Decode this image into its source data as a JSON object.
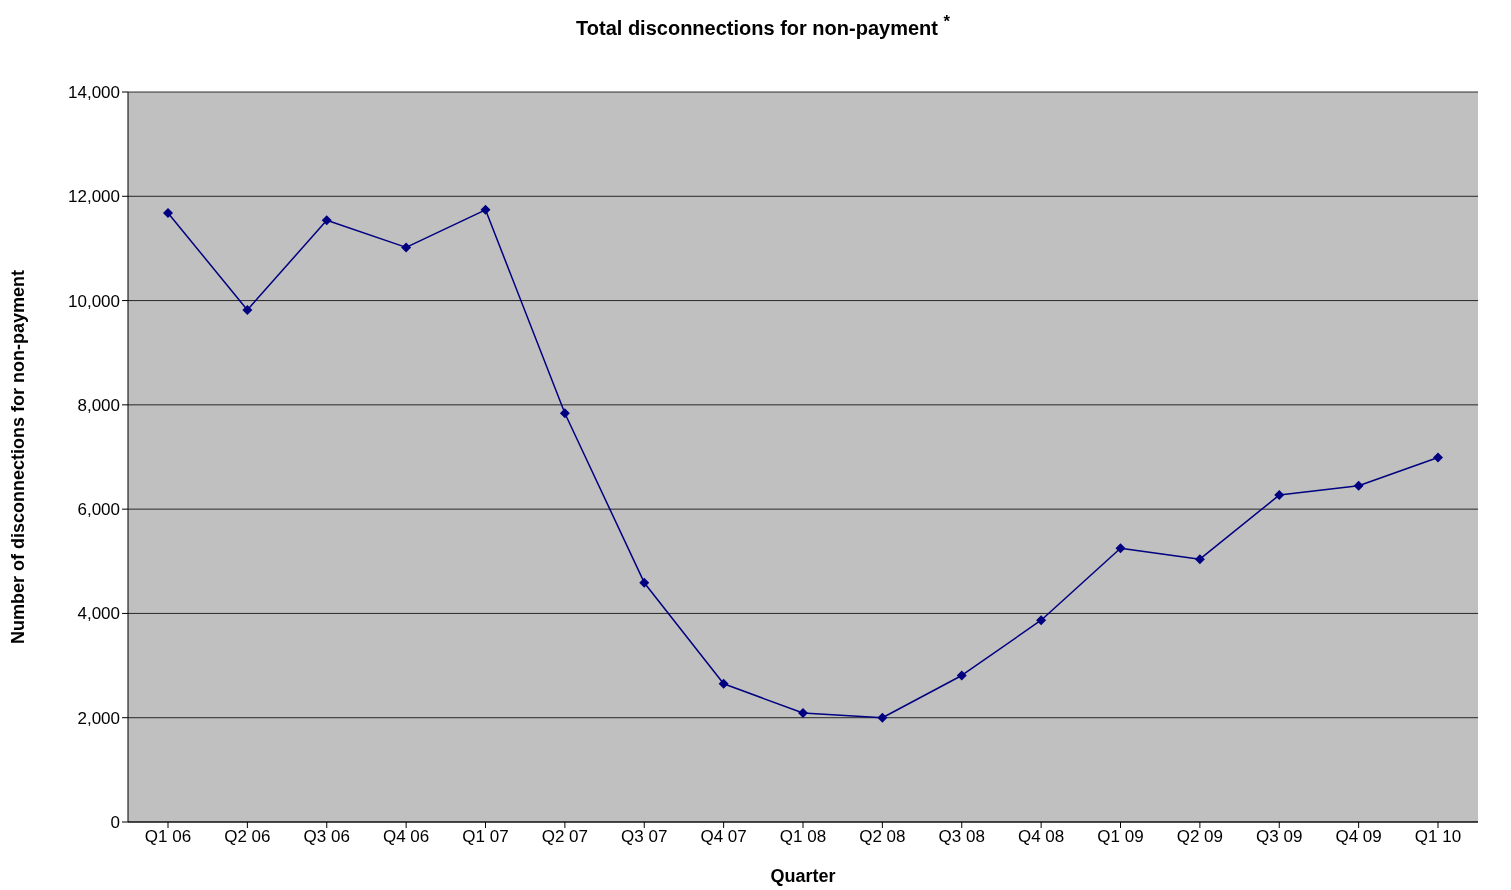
{
  "chart_data": {
    "type": "line",
    "title": "Total disconnections for non-payment $^{*}$",
    "xlabel": "Quarter",
    "ylabel": "Number of disconnections for non-payment",
    "categories": [
      "Q1 06",
      "Q2 06",
      "Q3 06",
      "Q4 06",
      "Q1 07",
      "Q2 07",
      "Q3 07",
      "Q4 07",
      "Q1 08",
      "Q2 08",
      "Q3 08",
      "Q4 08",
      "Q1 09",
      "Q2 09",
      "Q3 09",
      "Q4 09",
      "Q1 10"
    ],
    "series": [
      {
        "color": "#000080",
        "values": [
          11680,
          9820,
          11540,
          11020,
          11740,
          7840,
          4590,
          2650,
          2090,
          2000,
          2810,
          3870,
          5250,
          5040,
          6270,
          6450,
          6990
        ]
      }
    ],
    "ylim": [
      0,
      14000
    ],
    "yticks": [
      {
        "value": 0,
        "label": "0"
      },
      {
        "value": 2000,
        "label": "2,000"
      },
      {
        "value": 4000,
        "label": "4,000"
      },
      {
        "value": 6000,
        "label": "6,000"
      },
      {
        "value": 8000,
        "label": "8,000"
      },
      {
        "value": 10000,
        "label": "10,000"
      },
      {
        "value": 12000,
        "label": "12,000"
      },
      {
        "value": 14000,
        "label": "14,000"
      }
    ],
    "grid": "y",
    "legend": false,
    "marker": "diamond",
    "line_style": "solid"
  }
}
